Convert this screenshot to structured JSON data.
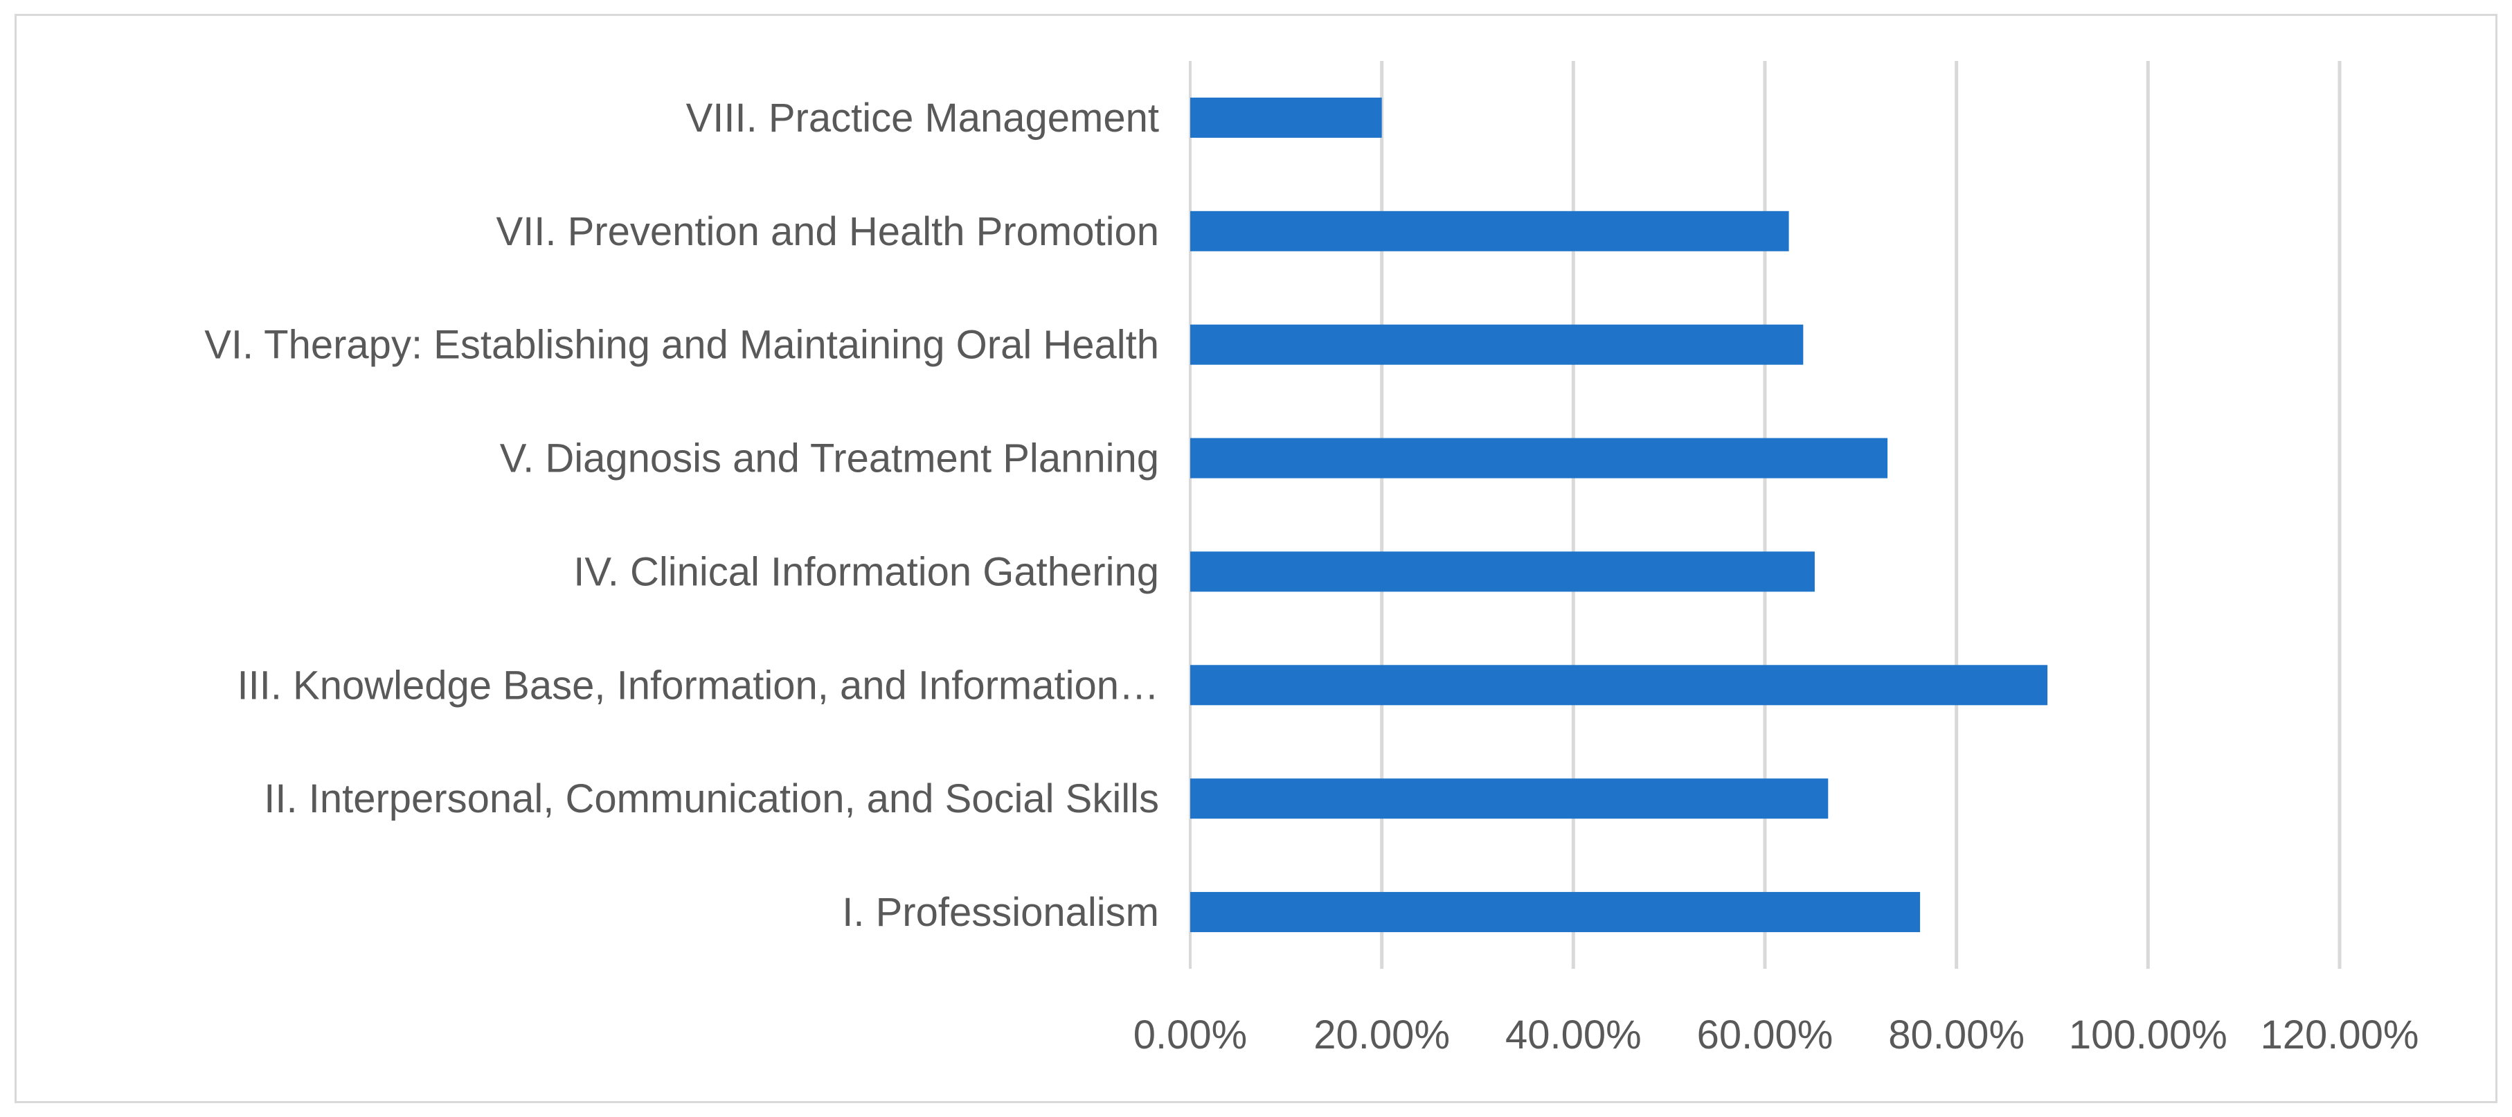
{
  "chart_data": {
    "type": "bar",
    "orientation": "horizontal",
    "title": "",
    "xlabel": "",
    "ylabel": "",
    "categories": [
      "VIII. Practice Management",
      "VII. Prevention and Health Promotion",
      "VI. Therapy: Establishing and Maintaining Oral Health",
      "V. Diagnosis and Treatment Planning",
      "IV. Clinical Information Gathering",
      "III. Knowledge Base, Information, and Information…",
      "II. Interpersonal, Communication, and Social Skills",
      "I. Professionalism"
    ],
    "values": [
      0.2,
      0.625,
      0.64,
      0.728,
      0.652,
      0.895,
      0.666,
      0.762
    ],
    "xlim": [
      0,
      1.2
    ],
    "ticks": [
      0,
      0.2,
      0.4,
      0.6,
      0.8,
      1.0,
      1.2
    ],
    "tick_labels": [
      "0.00%",
      "20.00%",
      "40.00%",
      "60.00%",
      "80.00%",
      "100.00%",
      "120.00%"
    ],
    "grid": true,
    "legend": "none",
    "bar_color": "#1f73c9",
    "grid_color": "#d9d9d9",
    "text_color": "#595959"
  }
}
